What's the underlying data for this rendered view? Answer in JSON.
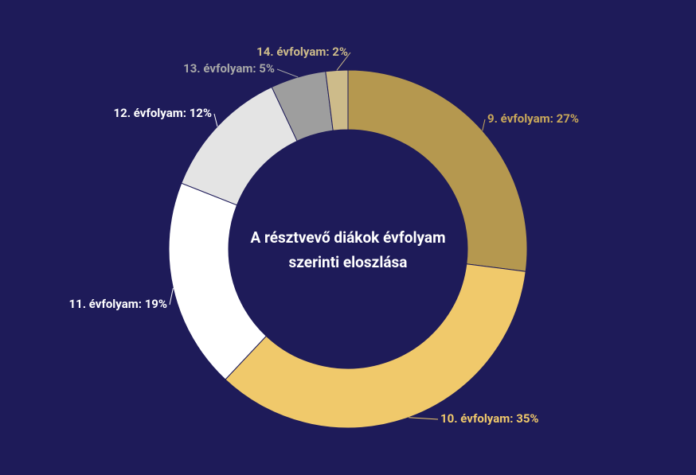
{
  "chart_data": {
    "type": "donut",
    "title": "A résztvevő diákok évfolyam szerinti eloszlása",
    "values": [
      27,
      35,
      19,
      12,
      5,
      2
    ],
    "value_labels": [
      "9. évfolyam: 27%",
      "10. évfolyam: 35%",
      "11. évfolyam: 19%",
      "12. évfolyam: 12%",
      "13. évfolyam: 5%",
      "14. évfolyam: 2%"
    ],
    "colors": [
      "#b5984f",
      "#f0c96b",
      "#ffffff",
      "#e4e4e4",
      "#9e9e9e",
      "#cdbb8a"
    ],
    "label_colors": [
      "#c9a85a",
      "#f0c96b",
      "#ffffff",
      "#ffffff",
      "#a8a8a8",
      "#cdbb8a"
    ]
  }
}
